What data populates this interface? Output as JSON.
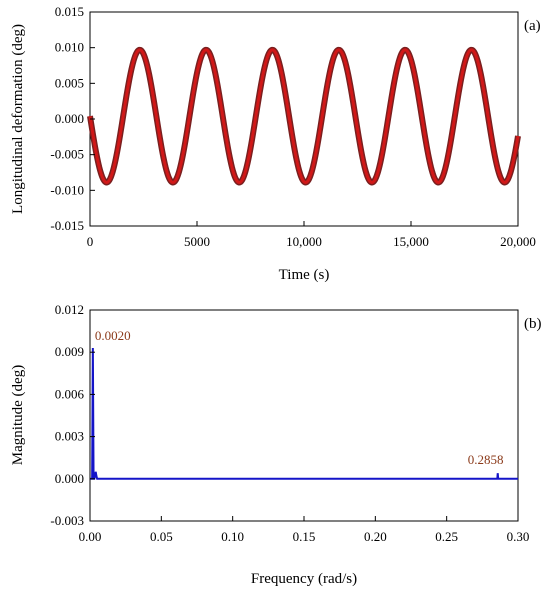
{
  "colors": {
    "signal_outer": "#7a1f1f",
    "signal_inner": "#d01818",
    "spectrum": "#1414c8",
    "annotation": "#8b3a1a"
  },
  "chart_data": [
    {
      "type": "line",
      "panel_label": "(a)",
      "xlabel": "Time (s)",
      "ylabel": "Longitudinal deformation (deg)",
      "xlim": [
        0,
        20000
      ],
      "ylim": [
        -0.015,
        0.015
      ],
      "x_ticks": [
        0,
        5000,
        10000,
        15000,
        20000
      ],
      "x_tick_labels": [
        "0",
        "5000",
        "10,000",
        "15,000",
        "20,000"
      ],
      "y_ticks": [
        0.015,
        0.01,
        0.005,
        0.0,
        -0.005,
        -0.01,
        -0.015
      ],
      "y_tick_labels": [
        "0.015",
        "0.010",
        "0.005",
        "0.000",
        "-0.005",
        "-0.010",
        "-0.015"
      ],
      "grid": false,
      "series": [
        {
          "signal": "sinusoid",
          "amplitude": 0.0093,
          "offset": 0.0004,
          "period": 3100,
          "phase_shift": 1550,
          "x_range": [
            0,
            20000
          ]
        }
      ]
    },
    {
      "type": "line",
      "panel_label": "(b)",
      "xlabel": "Frequency (rad/s)",
      "ylabel": "Magnitude (deg)",
      "xlim": [
        0,
        0.3
      ],
      "ylim": [
        -0.003,
        0.012
      ],
      "x_ticks": [
        0,
        0.05,
        0.1,
        0.15,
        0.2,
        0.25,
        0.3
      ],
      "x_tick_labels": [
        "0.00",
        "0.05",
        "0.10",
        "0.15",
        "0.20",
        "0.25",
        "0.30"
      ],
      "y_ticks": [
        0.012,
        0.009,
        0.006,
        0.003,
        0.0,
        -0.003
      ],
      "y_tick_labels": [
        "0.012",
        "0.009",
        "0.006",
        "0.003",
        "0.000",
        "-0.003"
      ],
      "grid": false,
      "series": [
        {
          "x": [
            0,
            0.0015,
            0.002,
            0.0025,
            0.003,
            0.0035,
            0.004,
            0.0045,
            0.005,
            0.3
          ],
          "y": [
            0.0,
            0.0,
            0.0093,
            0.0,
            0.0,
            0.0002,
            0.0005,
            0.0002,
            0.0,
            0.0
          ]
        },
        {
          "x": [
            0.2855,
            0.2858,
            0.2861
          ],
          "y": [
            0.0,
            0.0004,
            0.0
          ]
        }
      ],
      "annotations": [
        {
          "text": "0.0020",
          "x": 0.002,
          "y": 0.0093
        },
        {
          "text": "0.2858",
          "x": 0.2858,
          "y": 0.0004
        }
      ]
    }
  ]
}
